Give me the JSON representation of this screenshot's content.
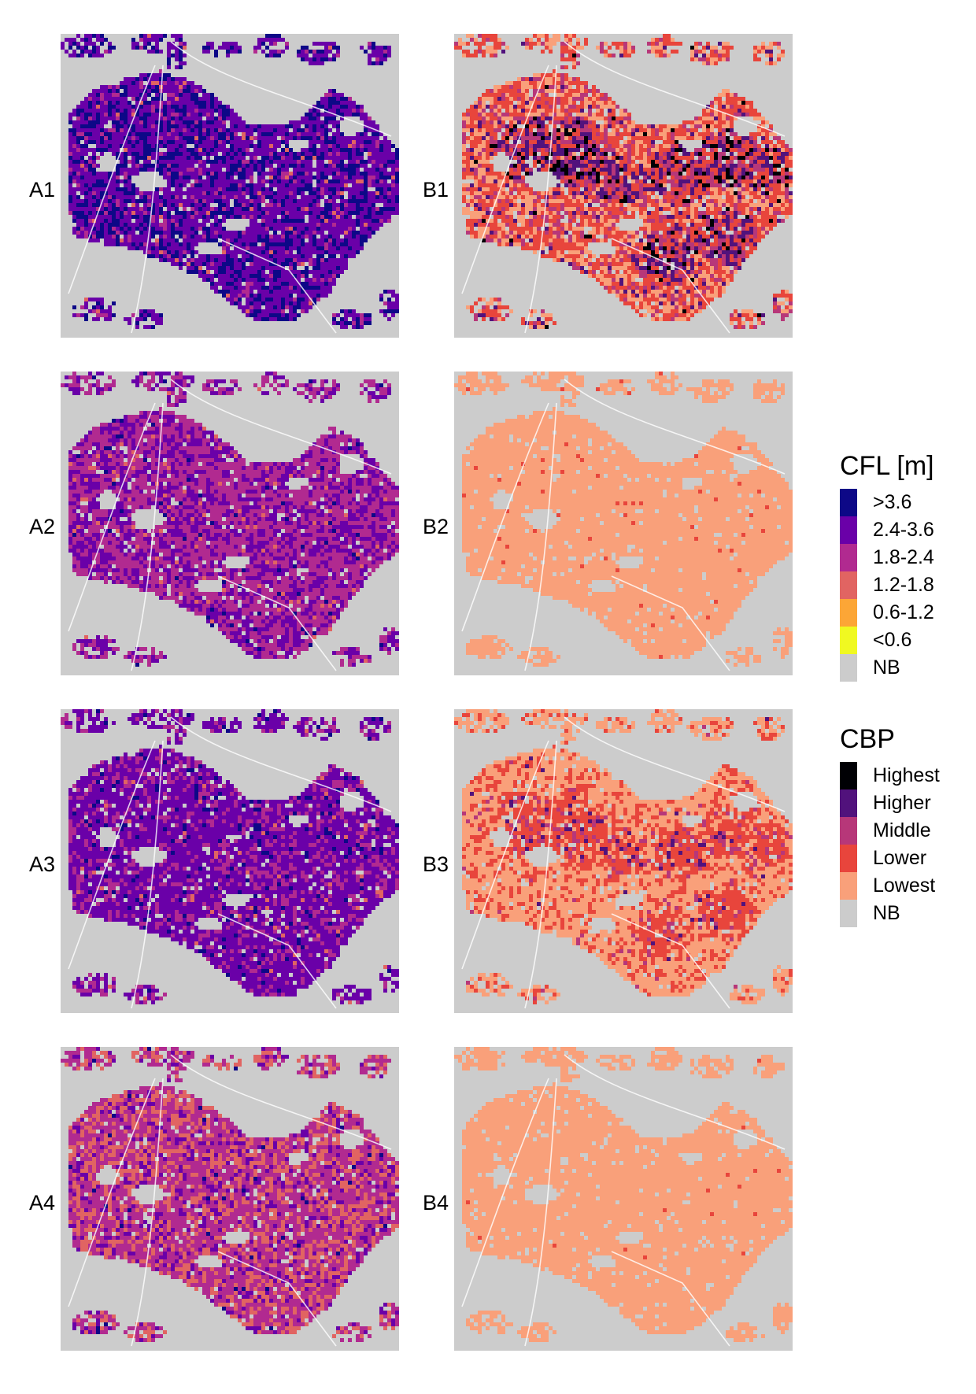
{
  "panels": [
    {
      "id": "A1",
      "label": "A1",
      "scheme": "cfl",
      "weights": [
        0.3,
        0.6,
        0.08,
        0.02,
        0.0,
        0.0
      ]
    },
    {
      "id": "A2",
      "label": "A2",
      "scheme": "cfl",
      "weights": [
        0.02,
        0.38,
        0.57,
        0.03,
        0.0,
        0.0
      ]
    },
    {
      "id": "A3",
      "label": "A3",
      "scheme": "cfl",
      "weights": [
        0.05,
        0.7,
        0.23,
        0.02,
        0.0,
        0.0
      ]
    },
    {
      "id": "A4",
      "label": "A4",
      "scheme": "cfl",
      "weights": [
        0.01,
        0.15,
        0.52,
        0.32,
        0.0,
        0.0
      ]
    },
    {
      "id": "B1",
      "label": "B1",
      "scheme": "cbp",
      "weights": [
        0.08,
        0.2,
        0.22,
        0.38,
        0.12
      ]
    },
    {
      "id": "B2",
      "label": "B2",
      "scheme": "cbp",
      "weights": [
        0.0,
        0.0,
        0.0,
        0.02,
        0.98
      ]
    },
    {
      "id": "B3",
      "label": "B3",
      "scheme": "cbp",
      "weights": [
        0.0,
        0.02,
        0.06,
        0.4,
        0.52
      ]
    },
    {
      "id": "B4",
      "label": "B4",
      "scheme": "cbp",
      "weights": [
        0.0,
        0.0,
        0.0,
        0.005,
        0.995
      ]
    }
  ],
  "legends": {
    "cfl": {
      "title": "CFL [m]",
      "items": [
        {
          "label": ">3.6",
          "color": "#0d0887"
        },
        {
          "label": "2.4-3.6",
          "color": "#6a00a8"
        },
        {
          "label": "1.8-2.4",
          "color": "#b12a90"
        },
        {
          "label": "1.2-1.8",
          "color": "#e16462"
        },
        {
          "label": "0.6-1.2",
          "color": "#fca636"
        },
        {
          "label": "<0.6",
          "color": "#f0f921"
        },
        {
          "label": "NB",
          "color": "#cccccc"
        }
      ]
    },
    "cbp": {
      "title": "CBP",
      "items": [
        {
          "label": "Highest",
          "color": "#000004"
        },
        {
          "label": "Higher",
          "color": "#51127c"
        },
        {
          "label": "Middle",
          "color": "#b73779"
        },
        {
          "label": "Lower",
          "color": "#e8453c"
        },
        {
          "label": "Lowest",
          "color": "#f9a07a"
        },
        {
          "label": "NB",
          "color": "#cccccc"
        }
      ]
    }
  }
}
